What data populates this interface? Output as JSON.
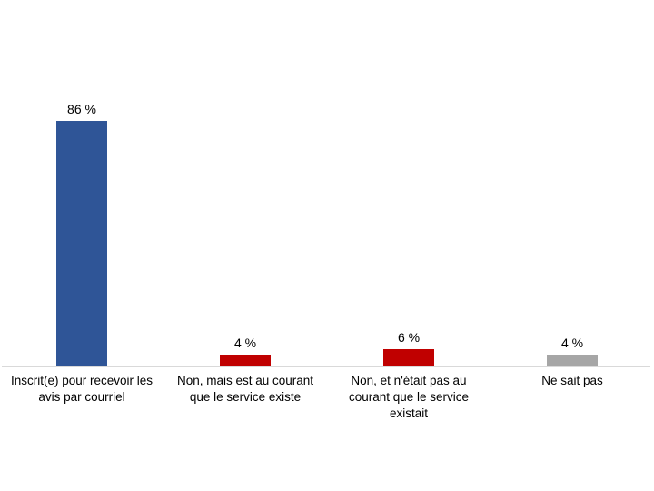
{
  "chart_data": {
    "type": "bar",
    "title": "",
    "xlabel": "",
    "ylabel": "",
    "unit": "%",
    "ylim": [
      0,
      100
    ],
    "grid": false,
    "legend": false,
    "y_axis_visible": false,
    "categories": [
      "Inscrit(e) pour recevoir les avis par courriel",
      "Non, mais est au courant que le service existe",
      "Non, et n'était pas au courant que le service existait",
      "Ne sait pas"
    ],
    "category_lines": [
      [
        "Inscrit(e) pour recevoir les",
        "avis par courriel"
      ],
      [
        "Non, mais est au courant",
        "que le service existe"
      ],
      [
        "Non, et n'était pas au",
        "courant que le service",
        "existait"
      ],
      [
        "Ne sait pas"
      ]
    ],
    "values": [
      86,
      4,
      6,
      4
    ],
    "value_labels": [
      "86 %",
      "4 %",
      "6 %",
      "4 %"
    ],
    "bar_colors": [
      "#2F5597",
      "#C00000",
      "#C00000",
      "#A6A6A6"
    ],
    "axis_line_color": "#D9D9D9",
    "text_color": "#000000",
    "background_color": "#FFFFFF"
  }
}
